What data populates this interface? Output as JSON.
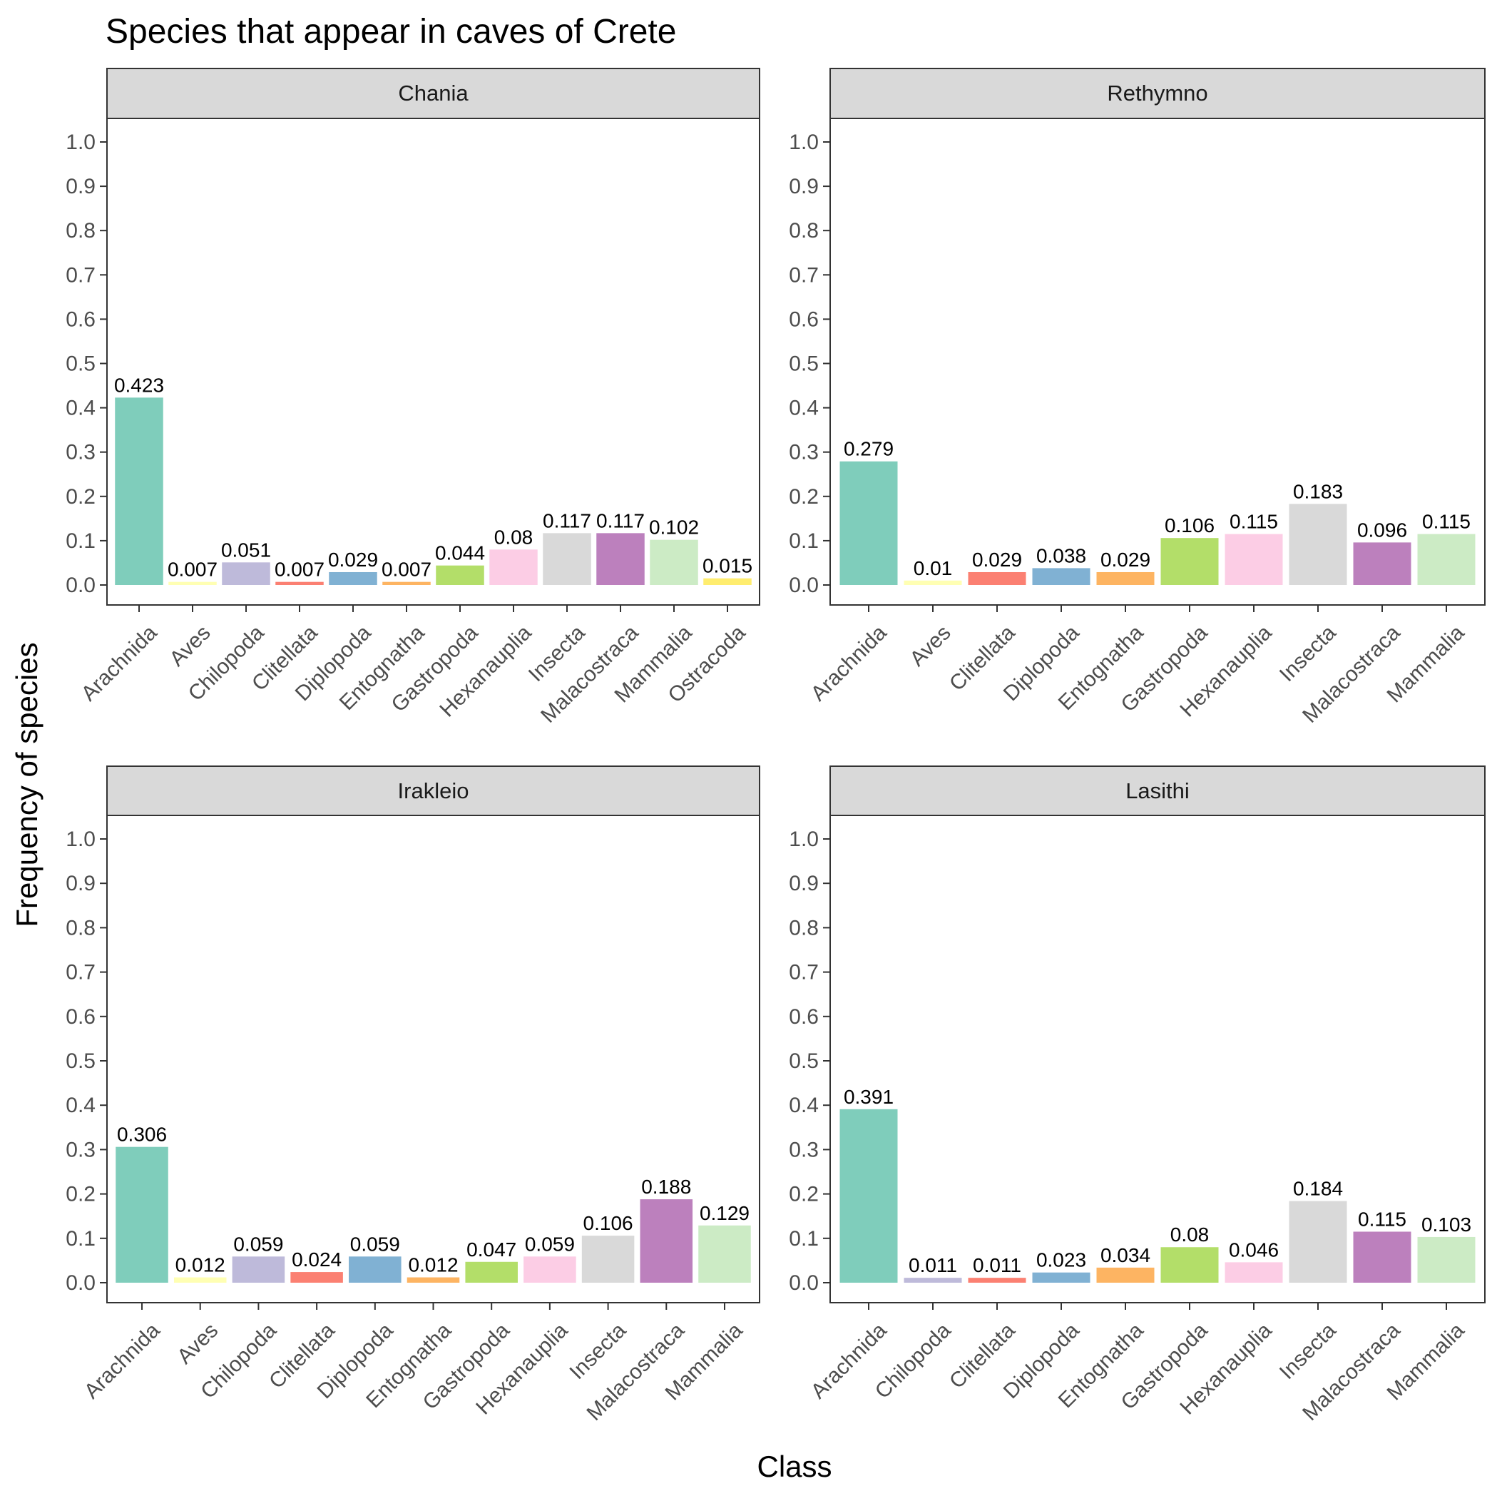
{
  "chart_data": {
    "type": "bar",
    "title": "Species that appear in caves of Crete",
    "xlabel": "Class",
    "ylabel": "Frequency of species",
    "ylim": [
      0,
      1.0
    ],
    "yticks": [
      "0.0",
      "0.1",
      "0.2",
      "0.3",
      "0.4",
      "0.5",
      "0.6",
      "0.7",
      "0.8",
      "0.9",
      "1.0"
    ],
    "grid": false,
    "legend": "none",
    "class_colors": {
      "Arachnida": "#7FCDBB",
      "Aves": "#FFFFB3",
      "Chilopoda": "#BEBADA",
      "Clitellata": "#FB8072",
      "Diplopoda": "#80B1D3",
      "Entognatha": "#FDB462",
      "Gastropoda": "#B3DE69",
      "Hexanauplia": "#FCCDE5",
      "Insecta": "#D9D9D9",
      "Malacostraca": "#BC80BD",
      "Mammalia": "#CCEBC5",
      "Ostracoda": "#FFED6F"
    },
    "facets": [
      {
        "name": "Chania",
        "categories": [
          "Arachnida",
          "Aves",
          "Chilopoda",
          "Clitellata",
          "Diplopoda",
          "Entognatha",
          "Gastropoda",
          "Hexanauplia",
          "Insecta",
          "Malacostraca",
          "Mammalia",
          "Ostracoda"
        ],
        "values": [
          0.423,
          0.007,
          0.051,
          0.007,
          0.029,
          0.007,
          0.044,
          0.08,
          0.117,
          0.117,
          0.102,
          0.015
        ],
        "labels": [
          "0.423",
          "0.007",
          "0.051",
          "0.007",
          "0.029",
          "0.007",
          "0.044",
          "0.08",
          "0.117",
          "0.117",
          "0.102",
          "0.015"
        ]
      },
      {
        "name": "Rethymno",
        "categories": [
          "Arachnida",
          "Aves",
          "Clitellata",
          "Diplopoda",
          "Entognatha",
          "Gastropoda",
          "Hexanauplia",
          "Insecta",
          "Malacostraca",
          "Mammalia"
        ],
        "values": [
          0.279,
          0.01,
          0.029,
          0.038,
          0.029,
          0.106,
          0.115,
          0.183,
          0.096,
          0.115
        ],
        "labels": [
          "0.279",
          "0.01",
          "0.029",
          "0.038",
          "0.029",
          "0.106",
          "0.115",
          "0.183",
          "0.096",
          "0.115"
        ]
      },
      {
        "name": "Irakleio",
        "categories": [
          "Arachnida",
          "Aves",
          "Chilopoda",
          "Clitellata",
          "Diplopoda",
          "Entognatha",
          "Gastropoda",
          "Hexanauplia",
          "Insecta",
          "Malacostraca",
          "Mammalia"
        ],
        "values": [
          0.306,
          0.012,
          0.059,
          0.024,
          0.059,
          0.012,
          0.047,
          0.059,
          0.106,
          0.188,
          0.129
        ],
        "labels": [
          "0.306",
          "0.012",
          "0.059",
          "0.024",
          "0.059",
          "0.012",
          "0.047",
          "0.059",
          "0.106",
          "0.188",
          "0.129"
        ]
      },
      {
        "name": "Lasithi",
        "categories": [
          "Arachnida",
          "Chilopoda",
          "Clitellata",
          "Diplopoda",
          "Entognatha",
          "Gastropoda",
          "Hexanauplia",
          "Insecta",
          "Malacostraca",
          "Mammalia"
        ],
        "values": [
          0.391,
          0.011,
          0.011,
          0.023,
          0.034,
          0.08,
          0.046,
          0.184,
          0.115,
          0.103
        ],
        "labels": [
          "0.391",
          "0.011",
          "0.011",
          "0.023",
          "0.034",
          "0.08",
          "0.046",
          "0.184",
          "0.115",
          "0.103"
        ]
      }
    ]
  }
}
